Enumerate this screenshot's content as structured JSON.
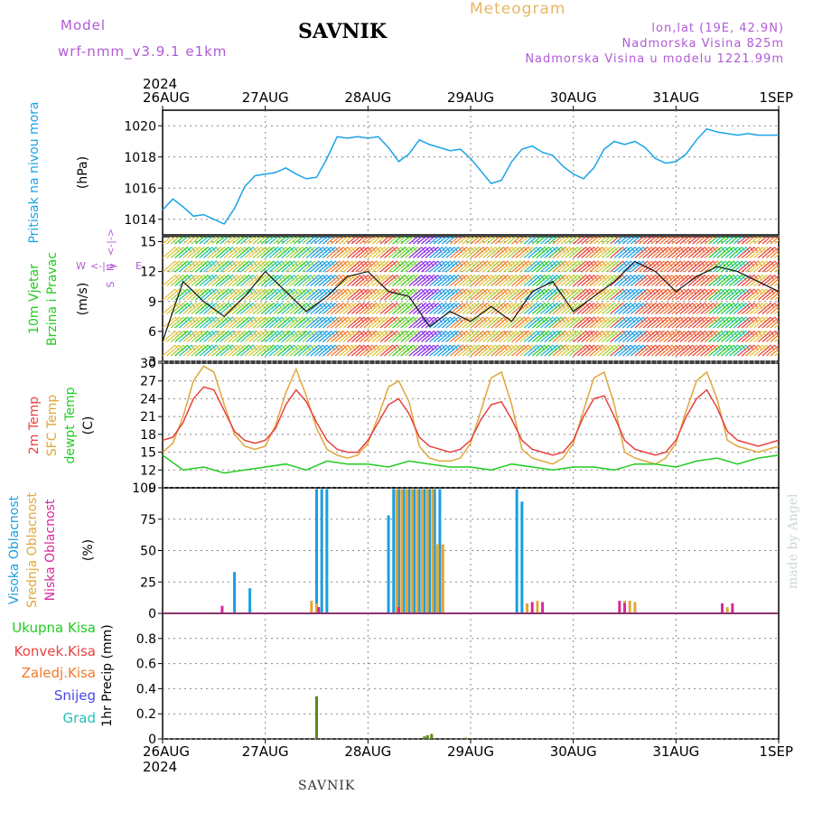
{
  "header": {
    "model_label": "Model",
    "model_name": "wrf-nmm_v3.9.1 e1km",
    "title": "SAVNIK",
    "meteogram": "Meteogram",
    "lonlat": "lon,lat (19E, 42.9N)",
    "altitude": "Nadmorska Visina 825m",
    "model_altitude": "Nadmorska Visina u modelu 1221.99m"
  },
  "footer": {
    "station": "SAVNIK",
    "credit": "made by Angel"
  },
  "colors": {
    "pressure": "#1aa3e8",
    "temp2m": "#e8413f",
    "sfc": "#e0a73a",
    "dewpt": "#22cc22",
    "high": "#1a9fe0",
    "mid": "#e0a73a",
    "low": "#d62a9a",
    "precip": "#5a8a1a",
    "purple": "#b05ad6"
  },
  "chart_data": [
    {
      "type": "line",
      "title": "",
      "ylabel": "(hPa)",
      "side_label": "Pritisak na nivou mora",
      "top_axis_year": "2024",
      "x_ticks": [
        "26AUG",
        "27AUG",
        "28AUG",
        "29AUG",
        "30AUG",
        "31AUG",
        "1SEP"
      ],
      "y_ticks": [
        1014,
        1016,
        1018,
        1020
      ],
      "ylim": [
        1013,
        1021
      ],
      "series": [
        {
          "name": "Pritisak na nivou mora",
          "x": [
            0.0,
            0.1,
            0.2,
            0.3,
            0.4,
            0.5,
            0.6,
            0.7,
            0.8,
            0.9,
            1.0,
            1.1,
            1.2,
            1.3,
            1.4,
            1.5,
            1.6,
            1.7,
            1.8,
            1.9,
            2.0,
            2.1,
            2.2,
            2.3,
            2.4,
            2.5,
            2.6,
            2.7,
            2.8,
            2.9,
            3.0,
            3.1,
            3.2,
            3.3,
            3.4,
            3.5,
            3.6,
            3.7,
            3.8,
            3.9,
            4.0,
            4.1,
            4.2,
            4.3,
            4.4,
            4.5,
            4.6,
            4.7,
            4.8,
            4.9,
            5.0,
            5.1,
            5.2,
            5.3,
            5.4,
            5.5,
            5.6,
            5.7,
            5.8,
            5.9,
            6.0
          ],
          "values": [
            1014.6,
            1015.3,
            1014.8,
            1014.2,
            1014.3,
            1014.0,
            1013.7,
            1014.7,
            1016.1,
            1016.8,
            1016.9,
            1017.0,
            1017.3,
            1016.9,
            1016.6,
            1016.7,
            1017.9,
            1019.3,
            1019.2,
            1019.3,
            1019.2,
            1019.3,
            1018.6,
            1017.7,
            1018.2,
            1019.1,
            1018.8,
            1018.6,
            1018.4,
            1018.5,
            1017.9,
            1017.1,
            1016.3,
            1016.5,
            1017.7,
            1018.5,
            1018.7,
            1018.3,
            1018.1,
            1017.4,
            1016.9,
            1016.6,
            1017.3,
            1018.5,
            1019.0,
            1018.8,
            1019.0,
            1018.6,
            1017.9,
            1017.6,
            1017.7,
            1018.2,
            1019.1,
            1019.8,
            1019.6,
            1019.5,
            1019.4,
            1019.5,
            1019.4,
            1019.4,
            1019.4
          ]
        }
      ]
    },
    {
      "type": "line",
      "title": "",
      "ylabel": "(m/s)",
      "side_label_1": "10m Vjetar",
      "side_label_2": "Brzina i Pravac",
      "compass": {
        "n": "N",
        "s": "S",
        "e": "E",
        "w": "W",
        "we": "<-|->",
        "ns": "<-|->"
      },
      "y_ticks": [
        3,
        6,
        9,
        12,
        15
      ],
      "ylim": [
        3,
        15.5
      ],
      "series": [
        {
          "name": "10m Vjetar",
          "x": [
            0.0,
            0.2,
            0.4,
            0.6,
            0.8,
            1.0,
            1.2,
            1.4,
            1.6,
            1.8,
            2.0,
            2.2,
            2.4,
            2.6,
            2.8,
            3.0,
            3.2,
            3.4,
            3.6,
            3.8,
            4.0,
            4.2,
            4.4,
            4.6,
            4.8,
            5.0,
            5.2,
            5.4,
            5.6,
            5.8,
            6.0
          ],
          "values": [
            5.0,
            11.0,
            9.0,
            7.5,
            9.5,
            12.0,
            10.0,
            8.0,
            9.5,
            11.5,
            12.0,
            10.0,
            9.5,
            6.5,
            8.0,
            7.0,
            8.5,
            7.0,
            10.0,
            11.0,
            8.0,
            9.5,
            11.0,
            13.0,
            12.0,
            10.0,
            11.5,
            12.5,
            12.0,
            11.0,
            10.0
          ]
        }
      ]
    },
    {
      "type": "line",
      "title": "",
      "ylabel": "(C)",
      "side_label_1": "2m Temp",
      "side_label_2": "SFC Temp",
      "side_label_3": "dewpt Temp",
      "y_ticks": [
        9,
        12,
        15,
        18,
        21,
        24,
        27,
        30
      ],
      "ylim": [
        9,
        30
      ],
      "series": [
        {
          "name": "2m Temp",
          "x": [
            0.0,
            0.1,
            0.2,
            0.3,
            0.4,
            0.5,
            0.6,
            0.7,
            0.8,
            0.9,
            1.0,
            1.1,
            1.2,
            1.3,
            1.4,
            1.5,
            1.6,
            1.7,
            1.8,
            1.9,
            2.0,
            2.1,
            2.2,
            2.3,
            2.4,
            2.5,
            2.6,
            2.7,
            2.8,
            2.9,
            3.0,
            3.1,
            3.2,
            3.3,
            3.4,
            3.5,
            3.6,
            3.7,
            3.8,
            3.9,
            4.0,
            4.1,
            4.2,
            4.3,
            4.4,
            4.5,
            4.6,
            4.7,
            4.8,
            4.9,
            5.0,
            5.1,
            5.2,
            5.3,
            5.4,
            5.5,
            5.6,
            5.7,
            5.8,
            5.9,
            6.0
          ],
          "values": [
            17.0,
            17.5,
            20.0,
            24.0,
            26.0,
            25.5,
            22.0,
            18.5,
            17.0,
            16.5,
            17.0,
            19.0,
            23.0,
            25.5,
            23.5,
            20.0,
            17.0,
            15.5,
            15.0,
            15.0,
            17.0,
            20.0,
            23.0,
            24.0,
            21.5,
            17.5,
            16.0,
            15.5,
            15.0,
            15.5,
            17.0,
            20.5,
            23.0,
            23.5,
            20.5,
            17.0,
            15.5,
            15.0,
            14.5,
            15.0,
            17.0,
            21.0,
            24.0,
            24.5,
            21.0,
            17.0,
            15.5,
            15.0,
            14.5,
            15.0,
            17.0,
            21.0,
            24.0,
            25.5,
            22.5,
            18.5,
            17.0,
            16.5,
            16.0,
            16.5,
            17.0
          ]
        },
        {
          "name": "SFC Temp",
          "x": [
            0.0,
            0.1,
            0.2,
            0.3,
            0.4,
            0.5,
            0.6,
            0.7,
            0.8,
            0.9,
            1.0,
            1.1,
            1.2,
            1.3,
            1.4,
            1.5,
            1.6,
            1.7,
            1.8,
            1.9,
            2.0,
            2.1,
            2.2,
            2.3,
            2.4,
            2.5,
            2.6,
            2.7,
            2.8,
            2.9,
            3.0,
            3.1,
            3.2,
            3.3,
            3.4,
            3.5,
            3.6,
            3.7,
            3.8,
            3.9,
            4.0,
            4.1,
            4.2,
            4.3,
            4.4,
            4.5,
            4.6,
            4.7,
            4.8,
            4.9,
            5.0,
            5.1,
            5.2,
            5.3,
            5.4,
            5.5,
            5.6,
            5.7,
            5.8,
            5.9,
            6.0
          ],
          "values": [
            15.0,
            16.5,
            21.0,
            27.0,
            29.5,
            28.5,
            23.0,
            18.0,
            16.0,
            15.5,
            16.0,
            19.5,
            25.0,
            29.0,
            24.5,
            19.0,
            15.5,
            14.5,
            14.0,
            14.5,
            16.5,
            21.0,
            26.0,
            27.0,
            23.5,
            16.0,
            14.0,
            13.5,
            13.5,
            14.0,
            16.5,
            22.0,
            27.5,
            28.5,
            23.0,
            15.5,
            14.0,
            13.5,
            13.0,
            14.0,
            16.5,
            22.0,
            27.5,
            28.5,
            23.0,
            15.0,
            14.0,
            13.5,
            13.0,
            14.0,
            16.5,
            22.0,
            27.0,
            28.5,
            24.0,
            17.0,
            16.0,
            15.5,
            15.0,
            15.5,
            16.0
          ]
        },
        {
          "name": "dewpt Temp",
          "x": [
            0.0,
            0.2,
            0.4,
            0.6,
            0.8,
            1.0,
            1.2,
            1.4,
            1.6,
            1.8,
            2.0,
            2.2,
            2.4,
            2.6,
            2.8,
            3.0,
            3.2,
            3.4,
            3.6,
            3.8,
            4.0,
            4.2,
            4.4,
            4.6,
            4.8,
            5.0,
            5.2,
            5.4,
            5.6,
            5.8,
            6.0
          ],
          "values": [
            14.5,
            12.0,
            12.5,
            11.5,
            12.0,
            12.5,
            13.0,
            12.0,
            13.5,
            13.0,
            13.0,
            12.5,
            13.5,
            13.0,
            12.5,
            12.5,
            12.0,
            13.0,
            12.5,
            12.0,
            12.5,
            12.5,
            12.0,
            13.0,
            13.0,
            12.5,
            13.5,
            14.0,
            13.0,
            14.0,
            14.5
          ]
        }
      ]
    },
    {
      "type": "bar",
      "title": "",
      "ylabel": "(%)",
      "side_label_1": "Visoka Oblacnost",
      "side_label_2": "Srednja Oblacnost",
      "side_label_3": "Niska Oblacnost",
      "y_ticks": [
        0,
        25,
        50,
        75,
        100
      ],
      "ylim": [
        0,
        100
      ],
      "series": [
        {
          "name": "Visoka Oblacnost",
          "x": [
            0.7,
            0.85,
            1.5,
            1.55,
            1.6,
            2.2,
            2.25,
            2.3,
            2.35,
            2.4,
            2.45,
            2.5,
            2.55,
            2.6,
            2.65,
            2.7,
            3.45,
            3.5
          ],
          "values": [
            33,
            20,
            99,
            99,
            99,
            78,
            99,
            99,
            99,
            99,
            99,
            99,
            99,
            99,
            99,
            99,
            99,
            89
          ]
        },
        {
          "name": "Srednja Oblacnost",
          "x": [
            1.45,
            1.5,
            2.28,
            2.33,
            2.38,
            2.43,
            2.48,
            2.53,
            2.58,
            2.63,
            2.68,
            2.73,
            3.55,
            3.65,
            4.5,
            4.55,
            4.6,
            5.5
          ],
          "values": [
            10,
            8,
            99,
            99,
            99,
            99,
            99,
            99,
            99,
            99,
            55,
            55,
            8,
            10,
            10,
            10,
            9,
            5
          ]
        },
        {
          "name": "Niska Oblacnost",
          "x": [
            0.58,
            1.52,
            2.3,
            3.6,
            3.7,
            4.45,
            4.5,
            5.45,
            5.55
          ],
          "values": [
            6,
            5,
            5,
            9,
            9,
            10,
            8,
            8,
            8
          ]
        }
      ]
    },
    {
      "type": "bar",
      "title": "",
      "ylabel": "1hr Precip (mm)",
      "y_ticks": [
        0,
        0.2,
        0.4,
        0.6,
        0.8
      ],
      "ylim": [
        0,
        1.0
      ],
      "legend": [
        "Ukupna Kisa",
        "Konvek.Kisa",
        "Zaledj.Kisa",
        "Snijeg",
        "Grad"
      ],
      "bottom_axis_year": "2024",
      "series": [
        {
          "name": "Ukupna Kisa",
          "x": [
            1.5,
            2.55,
            2.58,
            2.62,
            2.95
          ],
          "values": [
            0.34,
            0.02,
            0.03,
            0.04,
            0.01
          ]
        }
      ]
    }
  ]
}
